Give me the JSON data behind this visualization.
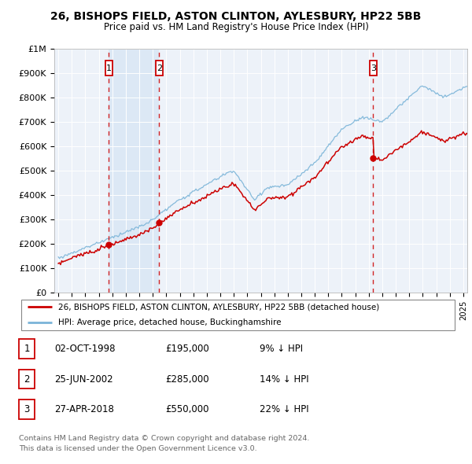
{
  "title1": "26, BISHOPS FIELD, ASTON CLINTON, AYLESBURY, HP22 5BB",
  "title2": "Price paid vs. HM Land Registry's House Price Index (HPI)",
  "legend_label1": "26, BISHOPS FIELD, ASTON CLINTON, AYLESBURY, HP22 5BB (detached house)",
  "legend_label2": "HPI: Average price, detached house, Buckinghamshire",
  "transactions": [
    {
      "num": 1,
      "date": "02-OCT-1998",
      "price": 195000,
      "year": 1998.75,
      "pct": "9%"
    },
    {
      "num": 2,
      "date": "25-JUN-2002",
      "price": 285000,
      "year": 2002.48,
      "pct": "14%"
    },
    {
      "num": 3,
      "date": "27-APR-2018",
      "price": 550000,
      "year": 2018.32,
      "pct": "22%"
    }
  ],
  "footer1": "Contains HM Land Registry data © Crown copyright and database right 2024.",
  "footer2": "This data is licensed under the Open Government Licence v3.0.",
  "red_color": "#cc0000",
  "blue_color": "#7ab4d8",
  "shade_color": "#dce8f5",
  "box_color": "#cc0000",
  "background_color": "#edf2f9",
  "ylim": [
    0,
    1000000
  ],
  "xlim_min": 1994.7,
  "xlim_max": 2025.3
}
